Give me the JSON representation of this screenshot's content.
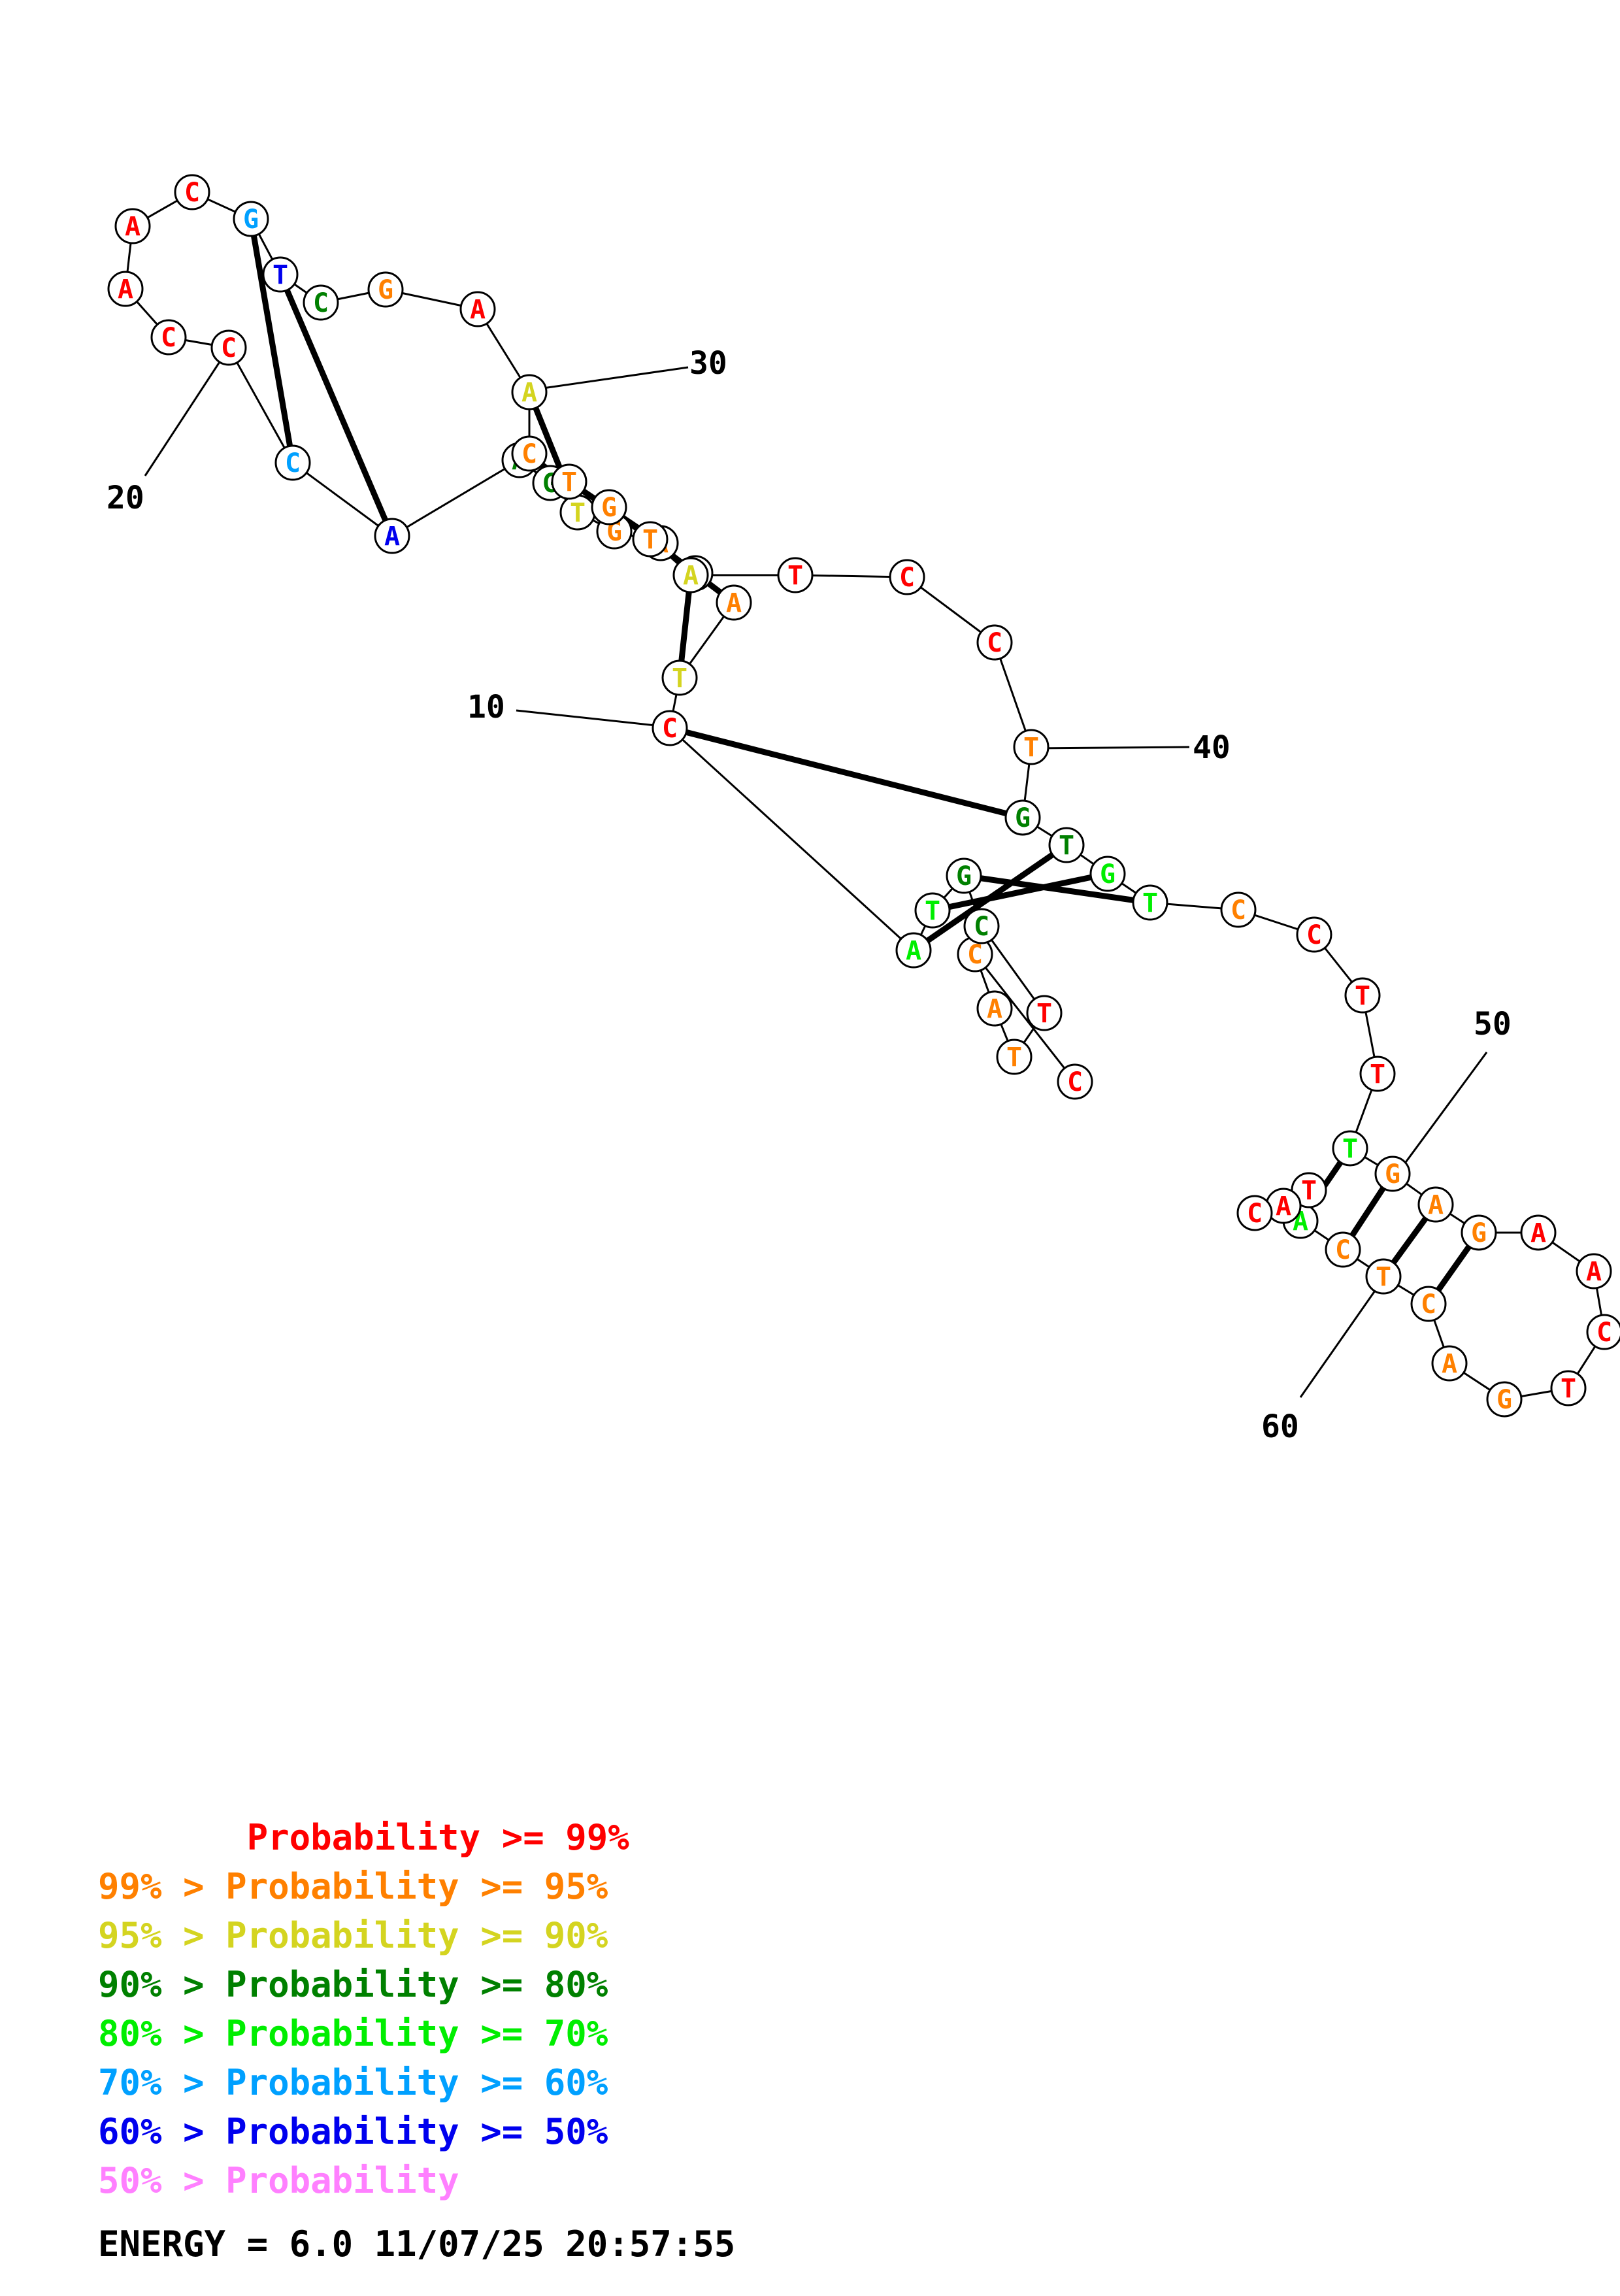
{
  "colors": {
    "p99": "#ff0000",
    "p95": "#ff8000",
    "p90": "#d4d420",
    "p80": "#008000",
    "p70": "#00ee00",
    "p60": "#00a0ff",
    "p50": "#0000ee",
    "plow": "#ff80ff"
  },
  "bases": [
    {
      "n": 1,
      "b": "C",
      "c": "p99"
    },
    {
      "n": 2,
      "b": "C",
      "c": "p95"
    },
    {
      "n": 3,
      "b": "A",
      "c": "p95"
    },
    {
      "n": 4,
      "b": "T",
      "c": "p95"
    },
    {
      "n": 5,
      "b": "T",
      "c": "p99"
    },
    {
      "n": 6,
      "b": "C",
      "c": "p80"
    },
    {
      "n": 7,
      "b": "G",
      "c": "p80"
    },
    {
      "n": 8,
      "b": "T",
      "c": "p70"
    },
    {
      "n": 9,
      "b": "A",
      "c": "p70"
    },
    {
      "n": 10,
      "b": "C",
      "c": "p99"
    },
    {
      "n": 11,
      "b": "T",
      "c": "p90"
    },
    {
      "n": 12,
      "b": "A",
      "c": "p95"
    },
    {
      "n": 13,
      "b": "T",
      "c": "p95"
    },
    {
      "n": 14,
      "b": "A",
      "c": "p95"
    },
    {
      "n": 15,
      "b": "G",
      "c": "p95"
    },
    {
      "n": 16,
      "b": "T",
      "c": "p90"
    },
    {
      "n": 17,
      "b": "G",
      "c": "p80"
    },
    {
      "n": 18,
      "b": "A",
      "c": "p80"
    },
    {
      "n": 19,
      "b": "A",
      "c": "p50"
    },
    {
      "n": 20,
      "b": "C",
      "c": "p60"
    },
    {
      "n": 21,
      "b": "C",
      "c": "p99"
    },
    {
      "n": 22,
      "b": "C",
      "c": "p99"
    },
    {
      "n": 23,
      "b": "A",
      "c": "p99"
    },
    {
      "n": 24,
      "b": "A",
      "c": "p99"
    },
    {
      "n": 25,
      "b": "C",
      "c": "p99"
    },
    {
      "n": 26,
      "b": "G",
      "c": "p60"
    },
    {
      "n": 27,
      "b": "T",
      "c": "p50"
    },
    {
      "n": 28,
      "b": "C",
      "c": "p80"
    },
    {
      "n": 29,
      "b": "G",
      "c": "p95"
    },
    {
      "n": 30,
      "b": "A",
      "c": "p99"
    },
    {
      "n": 31,
      "b": "A",
      "c": "p90"
    },
    {
      "n": 32,
      "b": "C",
      "c": "p95"
    },
    {
      "n": 33,
      "b": "T",
      "c": "p95"
    },
    {
      "n": 34,
      "b": "G",
      "c": "p95"
    },
    {
      "n": 35,
      "b": "T",
      "c": "p95"
    },
    {
      "n": 36,
      "b": "A",
      "c": "p90"
    },
    {
      "n": 37,
      "b": "T",
      "c": "p99"
    },
    {
      "n": 38,
      "b": "C",
      "c": "p99"
    },
    {
      "n": 39,
      "b": "C",
      "c": "p99"
    },
    {
      "n": 40,
      "b": "T",
      "c": "p95"
    },
    {
      "n": 41,
      "b": "G",
      "c": "p80"
    },
    {
      "n": 42,
      "b": "T",
      "c": "p80"
    },
    {
      "n": 43,
      "b": "G",
      "c": "p70"
    },
    {
      "n": 44,
      "b": "T",
      "c": "p70"
    },
    {
      "n": 45,
      "b": "C",
      "c": "p95"
    },
    {
      "n": 46,
      "b": "C",
      "c": "p99"
    },
    {
      "n": 47,
      "b": "T",
      "c": "p99"
    },
    {
      "n": 48,
      "b": "T",
      "c": "p99"
    },
    {
      "n": 49,
      "b": "T",
      "c": "p70"
    },
    {
      "n": 50,
      "b": "G",
      "c": "p95"
    },
    {
      "n": 51,
      "b": "A",
      "c": "p95"
    },
    {
      "n": 52,
      "b": "G",
      "c": "p95"
    },
    {
      "n": 53,
      "b": "A",
      "c": "p99"
    },
    {
      "n": 54,
      "b": "A",
      "c": "p99"
    },
    {
      "n": 55,
      "b": "C",
      "c": "p99"
    },
    {
      "n": 56,
      "b": "T",
      "c": "p99"
    },
    {
      "n": 57,
      "b": "G",
      "c": "p95"
    },
    {
      "n": 58,
      "b": "A",
      "c": "p95"
    },
    {
      "n": 59,
      "b": "C",
      "c": "p95"
    },
    {
      "n": 60,
      "b": "T",
      "c": "p95"
    },
    {
      "n": 61,
      "b": "C",
      "c": "p95"
    },
    {
      "n": 62,
      "b": "A",
      "c": "p70"
    },
    {
      "n": 63,
      "b": "T",
      "c": "p99"
    },
    {
      "n": 64,
      "b": "A",
      "c": "p99"
    },
    {
      "n": 65,
      "b": "C",
      "c": "p99"
    }
  ],
  "pairs": [
    [
      7,
      44
    ],
    [
      8,
      43
    ],
    [
      9,
      42
    ],
    [
      10,
      41
    ],
    [
      11,
      36
    ],
    [
      12,
      35
    ],
    [
      13,
      34
    ],
    [
      14,
      33
    ],
    [
      15,
      32
    ],
    [
      16,
      31
    ],
    [
      19,
      27
    ],
    [
      20,
      26
    ],
    [
      49,
      62
    ],
    [
      50,
      61
    ],
    [
      51,
      60
    ],
    [
      52,
      59
    ]
  ],
  "position_labels": [
    {
      "n": 10,
      "text": "10"
    },
    {
      "n": 20,
      "text": "20"
    },
    {
      "n": 30,
      "text": "30"
    },
    {
      "n": 40,
      "text": "40"
    },
    {
      "n": 50,
      "text": "50"
    },
    {
      "n": 60,
      "text": "60"
    }
  ],
  "legend": [
    {
      "text": "       Probability >= 99%",
      "c": "p99"
    },
    {
      "text": "99% > Probability >= 95%",
      "c": "p95"
    },
    {
      "text": "95% > Probability >= 90%",
      "c": "p90"
    },
    {
      "text": "90% > Probability >= 80%",
      "c": "p80"
    },
    {
      "text": "80% > Probability >= 70%",
      "c": "p70"
    },
    {
      "text": "70% > Probability >= 60%",
      "c": "p60"
    },
    {
      "text": "60% > Probability >= 50%",
      "c": "p50"
    },
    {
      "text": "50% > Probability",
      "c": "plow"
    }
  ],
  "footer": "ENERGY = 6.0  11/07/25 20:57:55"
}
